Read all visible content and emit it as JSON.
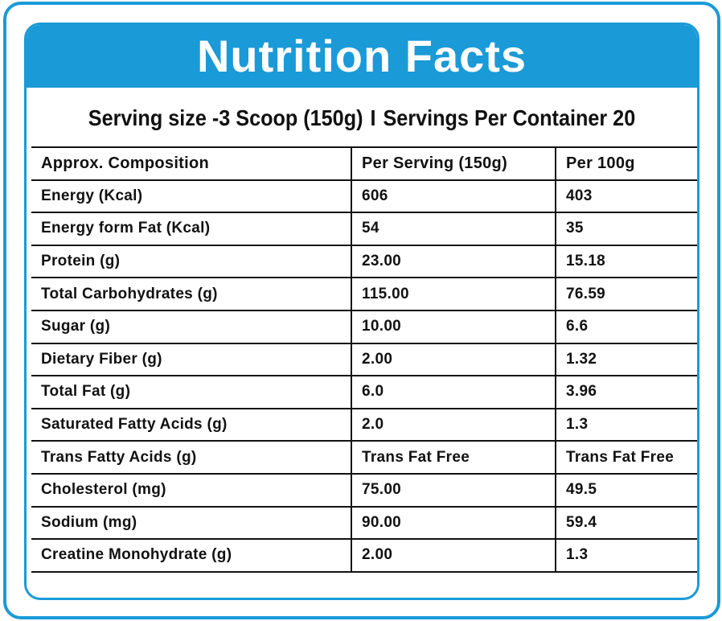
{
  "title": "Nutrition Facts",
  "serving": {
    "size": "Serving size -3 Scoop (150g)",
    "separator": "I",
    "per_container": "Servings Per Container 20"
  },
  "colors": {
    "accent": "#1a9ad7",
    "text": "#111111",
    "background": "#ffffff"
  },
  "table": {
    "headers": [
      "Approx. Composition",
      "Per Serving  (150g)",
      "Per 100g"
    ],
    "rows": [
      [
        "Energy (Kcal)",
        "606",
        "403"
      ],
      [
        "Energy form Fat (Kcal)",
        "54",
        "35"
      ],
      [
        "Protein (g)",
        "23.00",
        "15.18"
      ],
      [
        "Total Carbohydrates (g)",
        "115.00",
        "76.59"
      ],
      [
        "Sugar (g)",
        "10.00",
        "6.6"
      ],
      [
        "Dietary Fiber (g)",
        "2.00",
        "1.32"
      ],
      [
        "Total Fat (g)",
        "6.0",
        "3.96"
      ],
      [
        "Saturated Fatty Acids (g)",
        "2.0",
        "1.3"
      ],
      [
        "Trans Fatty Acids (g)",
        "Trans Fat Free",
        "Trans Fat Free"
      ],
      [
        "Cholesterol (mg)",
        "75.00",
        "49.5"
      ],
      [
        "Sodium (mg)",
        "90.00",
        "59.4"
      ],
      [
        "Creatine Monohydrate (g)",
        "2.00",
        "1.3"
      ]
    ]
  }
}
